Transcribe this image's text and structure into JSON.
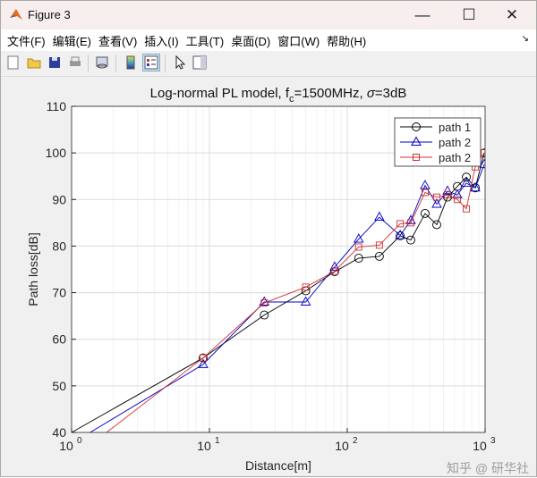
{
  "window": {
    "title": "Figure 3",
    "minimize": "—",
    "maximize": "☐",
    "close": "✕"
  },
  "menu": [
    "文件(F)",
    "编辑(E)",
    "查看(V)",
    "插入(I)",
    "工具(T)",
    "桌面(D)",
    "窗口(W)",
    "帮助(H)"
  ],
  "toolbar": [
    "new-figure-icon",
    "open-icon",
    "save-icon",
    "print-icon",
    "link-icon",
    "colorbar-icon",
    "legend-icon",
    "pointer-icon",
    "property-editor-icon"
  ],
  "watermark": "知乎 @ 研华社",
  "chart_data": {
    "type": "line",
    "title_parts": {
      "main": "Log-normal PL model, f",
      "sub": "c",
      "rest": "=1500MHz, ",
      "sigma": "σ",
      "end": "=3dB"
    },
    "xlabel": "Distance[m]",
    "ylabel": "Path loss[dB]",
    "xscale": "log",
    "xlim": [
      1,
      1000
    ],
    "ylim": [
      40,
      110
    ],
    "xticks": [
      {
        "base": "10",
        "exp": "0"
      },
      {
        "base": "10",
        "exp": "1"
      },
      {
        "base": "10",
        "exp": "2"
      },
      {
        "base": "10",
        "exp": "3"
      }
    ],
    "yticks": [
      40,
      50,
      60,
      70,
      80,
      90,
      100,
      110
    ],
    "grid": true,
    "legend_position": "top-right",
    "x": [
      1,
      9,
      25,
      50,
      81,
      121,
      171,
      242,
      289,
      367,
      446,
      534,
      629,
      731,
      849,
      986
    ],
    "series": [
      {
        "name": "path 1",
        "color": "#000000",
        "marker": "circle",
        "values": [
          40,
          56,
          65.2,
          70.4,
          74.5,
          77.4,
          77.8,
          82.2,
          81.3,
          87,
          84.6,
          90.5,
          92.8,
          94.8,
          92.5,
          100
        ]
      },
      {
        "name": "path 2",
        "color": "#0000c8",
        "marker": "triangle",
        "values": [
          37.6,
          54.6,
          68,
          68,
          75.5,
          81.5,
          86.2,
          82.3,
          85.5,
          93,
          89,
          91.8,
          91,
          93.5,
          92.5,
          97.5
        ]
      },
      {
        "name": "path 2",
        "color": "#d03030",
        "marker": "square",
        "values": [
          34.2,
          56,
          67.8,
          71.2,
          74.6,
          79.8,
          80.2,
          84.8,
          85,
          91.5,
          90.5,
          91,
          90,
          88,
          97,
          100
        ]
      }
    ]
  }
}
